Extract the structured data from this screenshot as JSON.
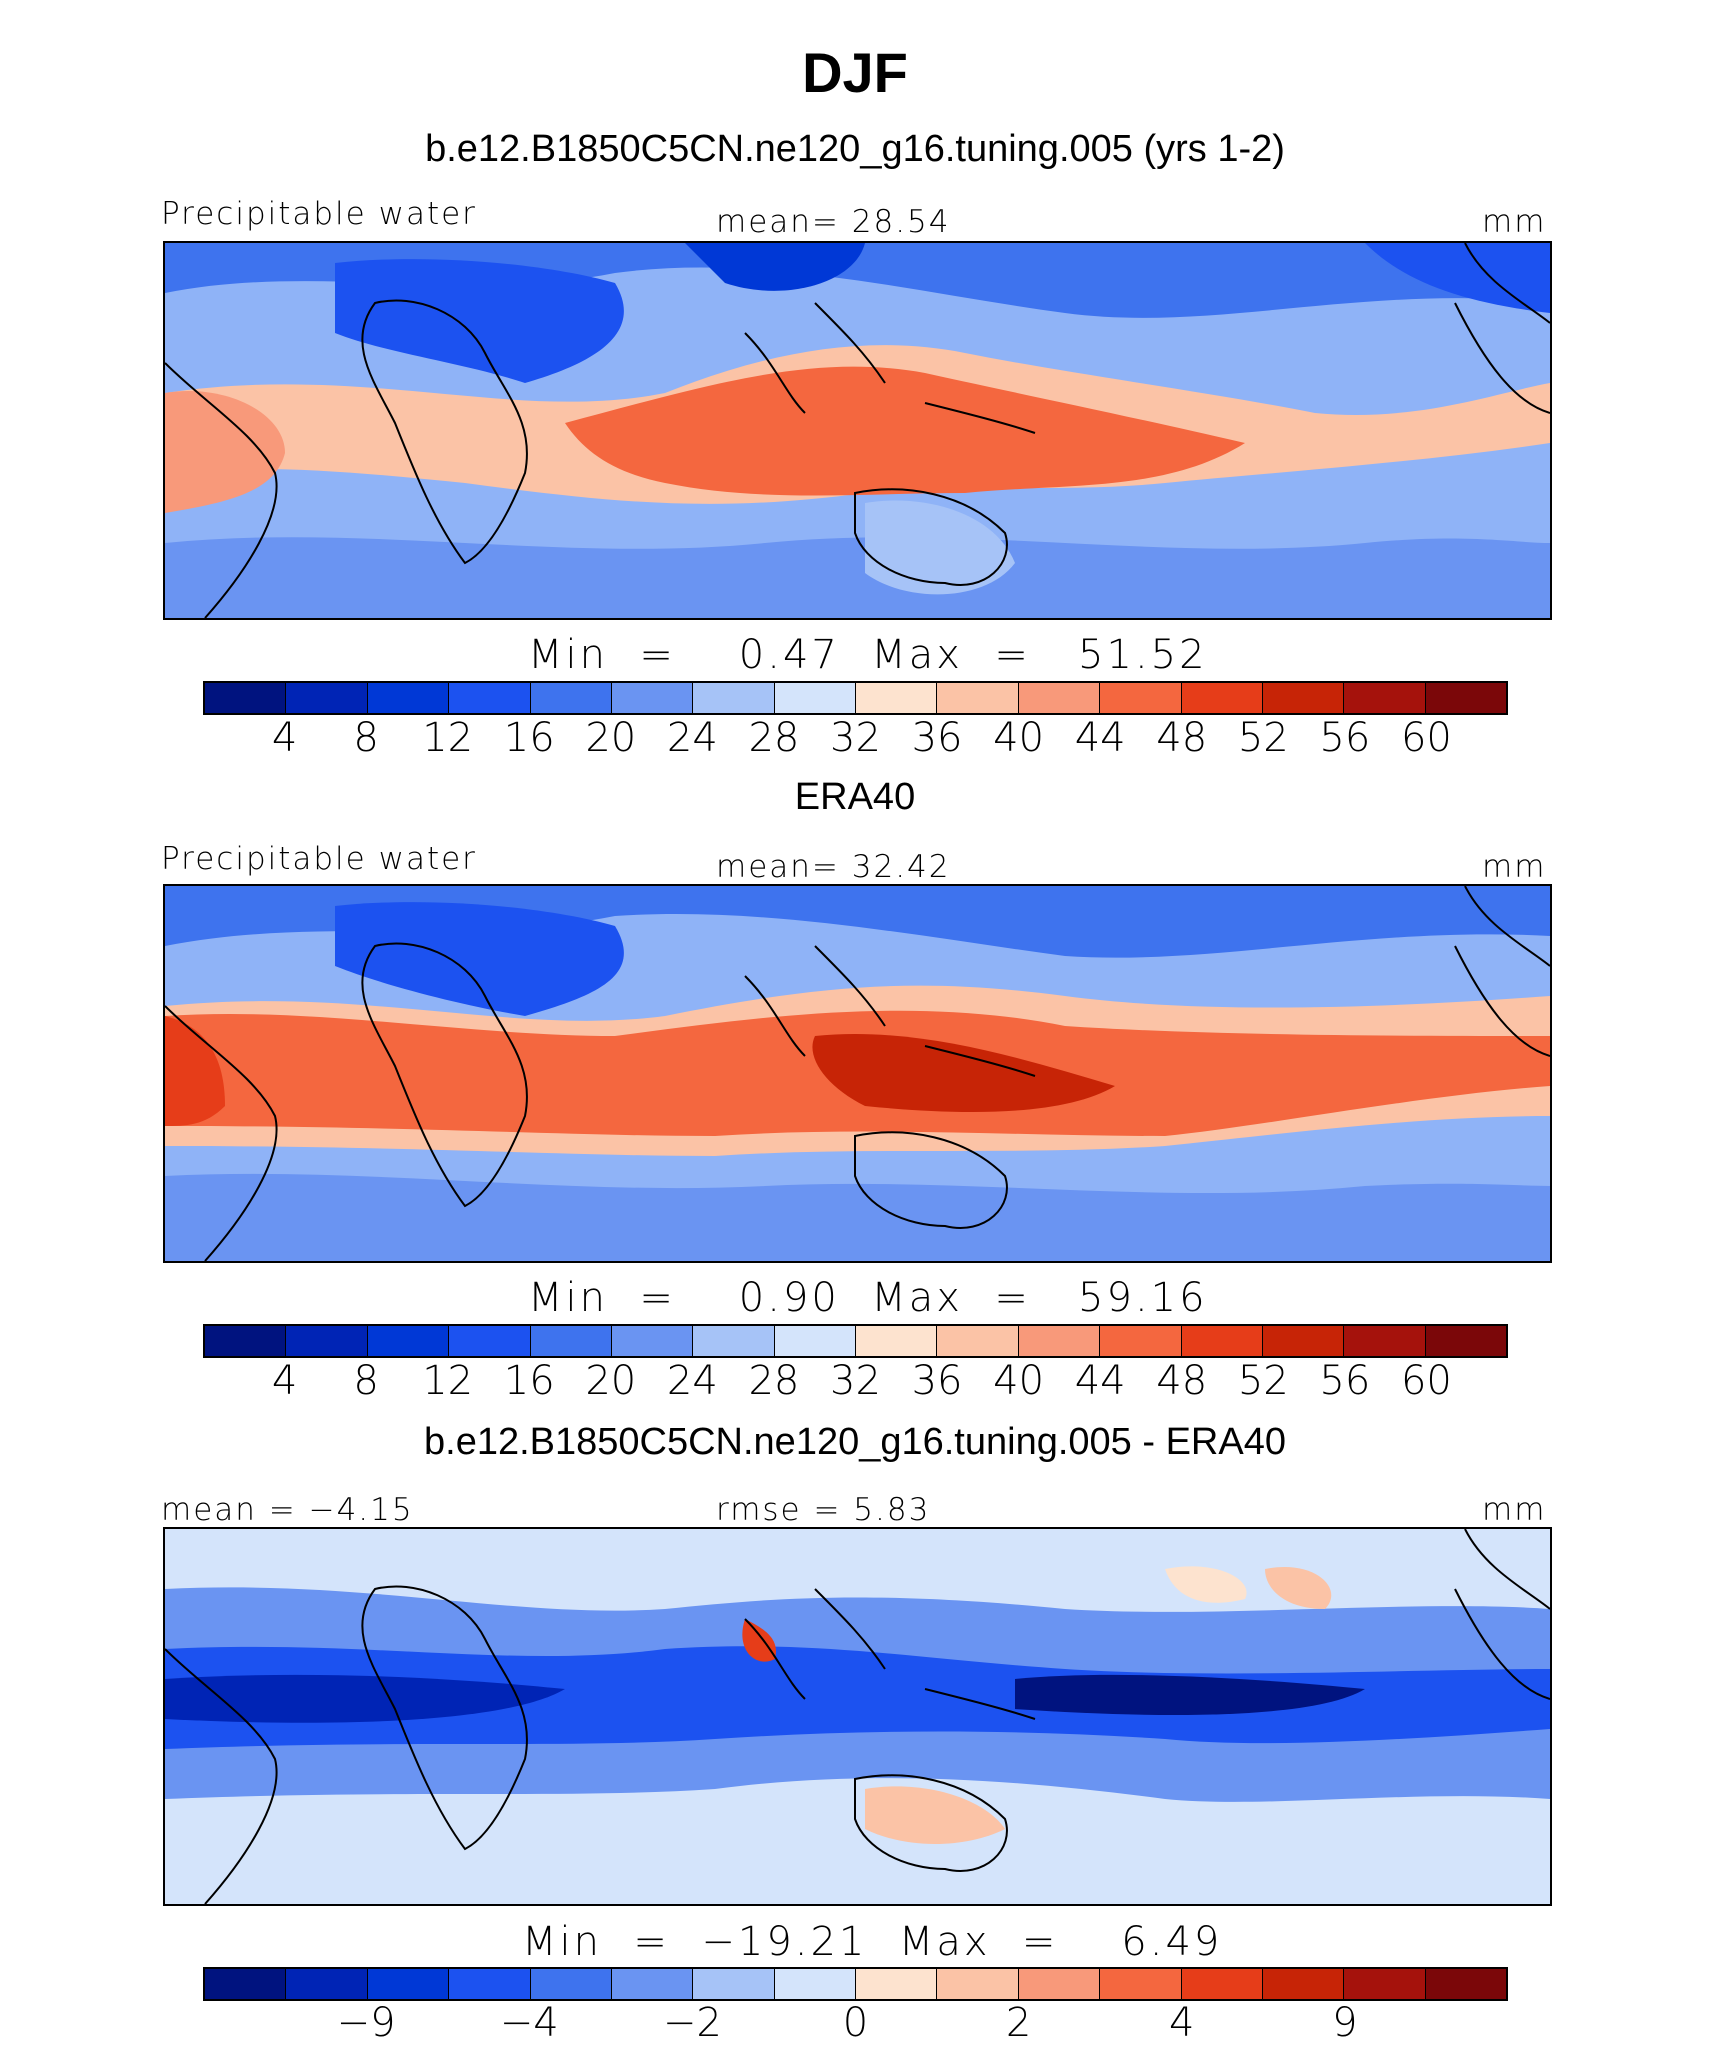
{
  "figure": {
    "title": "DJF"
  },
  "panels": [
    {
      "title": "b.e12.B1850C5CN.ne120_g16.tuning.005 (yrs 1-2)",
      "left_label": "Precipitable water",
      "center_label": "mean=   28.54",
      "right_label": "mm",
      "minmax": "Min  =    0.47  Max  =   51.52",
      "colorbar_ticks": [
        "4",
        "8",
        "12",
        "16",
        "20",
        "24",
        "28",
        "32",
        "36",
        "40",
        "44",
        "48",
        "52",
        "56",
        "60"
      ]
    },
    {
      "title": "ERA40",
      "left_label": "Precipitable water",
      "center_label": "mean=   32.42",
      "right_label": "mm",
      "minmax": "Min  =    0.90  Max  =   59.16",
      "colorbar_ticks": [
        "4",
        "8",
        "12",
        "16",
        "20",
        "24",
        "28",
        "32",
        "36",
        "40",
        "44",
        "48",
        "52",
        "56",
        "60"
      ]
    },
    {
      "title": "b.e12.B1850C5CN.ne120_g16.tuning.005 - ERA40",
      "left_label": "mean  =   −4.15",
      "center_label": "rmse  =    5.83",
      "right_label": "mm",
      "minmax": "Min  =  −19.21  Max  =    6.49",
      "colorbar_ticks": [
        "−9",
        "−4",
        "−2",
        "0",
        "2",
        "4",
        "9"
      ]
    }
  ],
  "colorbar_colors": [
    "#00137f",
    "#0024b5",
    "#0038d6",
    "#1c52f0",
    "#3e73ee",
    "#6a94f2",
    "#a6c3f7",
    "#d4e4fb",
    "#fde3cf",
    "#fbc3a6",
    "#f8997a",
    "#f4673f",
    "#e63d19",
    "#c72406",
    "#a5120c",
    "#7b0709"
  ],
  "chart_data": {
    "type": "heatmap",
    "title": "DJF",
    "maps": [
      {
        "title": "b.e12.B1850C5CN.ne120_g16.tuning.005 (yrs 1-2)",
        "variable": "Precipitable water",
        "units": "mm",
        "mean": 28.54,
        "min": 0.47,
        "max": 51.52,
        "levels": [
          4,
          8,
          12,
          16,
          20,
          24,
          28,
          32,
          36,
          40,
          44,
          48,
          52,
          56,
          60
        ]
      },
      {
        "title": "ERA40",
        "variable": "Precipitable water",
        "units": "mm",
        "mean": 32.42,
        "min": 0.9,
        "max": 59.16,
        "levels": [
          4,
          8,
          12,
          16,
          20,
          24,
          28,
          32,
          36,
          40,
          44,
          48,
          52,
          56,
          60
        ]
      },
      {
        "title": "b.e12.B1850C5CN.ne120_g16.tuning.005 - ERA40",
        "units": "mm",
        "mean": -4.15,
        "rmse": 5.83,
        "min": -19.21,
        "max": 6.49,
        "levels": [
          -9,
          -4,
          -2,
          0,
          2,
          4,
          9
        ]
      }
    ]
  }
}
